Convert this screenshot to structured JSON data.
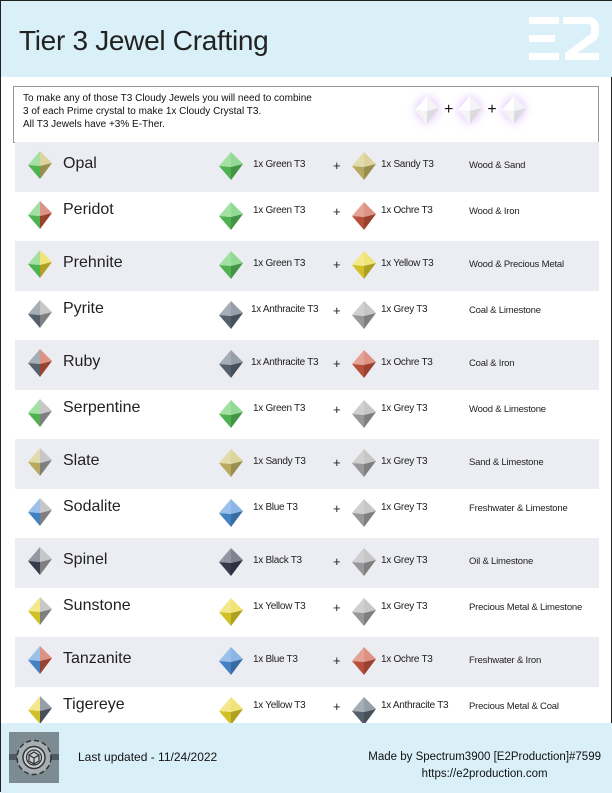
{
  "header": {
    "title": "Tier 3 Jewel Crafting",
    "logo": "E2"
  },
  "info": {
    "lines": [
      "To make any of those T3 Cloudy Jewels you will need to combine",
      "3 of each Prime crystal to make 1x Cloudy Crystal T3.",
      "All T3 Jewels have +3% E-Ther."
    ],
    "plus": "+"
  },
  "colors": {
    "Green": "#58c65a",
    "Sandy": "#cbbd68",
    "Ochre": "#cc5840",
    "Yellow": "#e9d52c",
    "Anthracite": "#5e6b78",
    "Grey": "#a9a9ab",
    "Blue": "#4a8fd8",
    "Black": "#3d4055",
    "header_bg": "#daf0f8",
    "row_alt": "#ecedf2"
  },
  "jewels": [
    {
      "name": "Opal",
      "a": "1x Green T3",
      "ac": "Green",
      "b": "1x Sandy T3",
      "bc": "Sandy",
      "result": "Wood & Sand"
    },
    {
      "name": "Peridot",
      "a": "1x Green T3",
      "ac": "Green",
      "b": "1x Ochre T3",
      "bc": "Ochre",
      "result": "Wood & Iron"
    },
    {
      "name": "Prehnite",
      "a": "1x Green T3",
      "ac": "Green",
      "b": "1x Yellow T3",
      "bc": "Yellow",
      "result": "Wood & Precious Metal"
    },
    {
      "name": "Pyrite",
      "a": "1x Anthracite T3",
      "ac": "Anthracite",
      "b": "1x Grey T3",
      "bc": "Grey",
      "result": "Coal & Limestone"
    },
    {
      "name": "Ruby",
      "a": "1x Anthracite T3",
      "ac": "Anthracite",
      "b": "1x Ochre T3",
      "bc": "Ochre",
      "result": "Coal & Iron"
    },
    {
      "name": "Serpentine",
      "a": "1x Green T3",
      "ac": "Green",
      "b": "1x Grey T3",
      "bc": "Grey",
      "result": "Wood & Limestone"
    },
    {
      "name": "Slate",
      "a": "1x Sandy T3",
      "ac": "Sandy",
      "b": "1x Grey T3",
      "bc": "Grey",
      "result": "Sand & Limestone"
    },
    {
      "name": "Sodalite",
      "a": "1x Blue T3",
      "ac": "Blue",
      "b": "1x Grey T3",
      "bc": "Grey",
      "result": "Freshwater & Limestone"
    },
    {
      "name": "Spinel",
      "a": "1x Black T3",
      "ac": "Black",
      "b": "1x Grey T3",
      "bc": "Grey",
      "result": "Oil & Limestone"
    },
    {
      "name": "Sunstone",
      "a": "1x Yellow T3",
      "ac": "Yellow",
      "b": "1x Grey T3",
      "bc": "Grey",
      "result": "Precious Metal & Limestone"
    },
    {
      "name": "Tanzanite",
      "a": "1x Blue T3",
      "ac": "Blue",
      "b": "1x Ochre T3",
      "bc": "Ochre",
      "result": "Freshwater & Iron"
    },
    {
      "name": "Tigereye",
      "a": "1x Yellow T3",
      "ac": "Yellow",
      "b": "1x Anthracite T3",
      "bc": "Anthracite",
      "result": "Precious Metal & Coal"
    }
  ],
  "footer": {
    "updated": "Last updated - 11/24/2022",
    "made_by": "Made by Spectrum3900 [E2Production]#7599",
    "url": "https://e2production.com"
  }
}
